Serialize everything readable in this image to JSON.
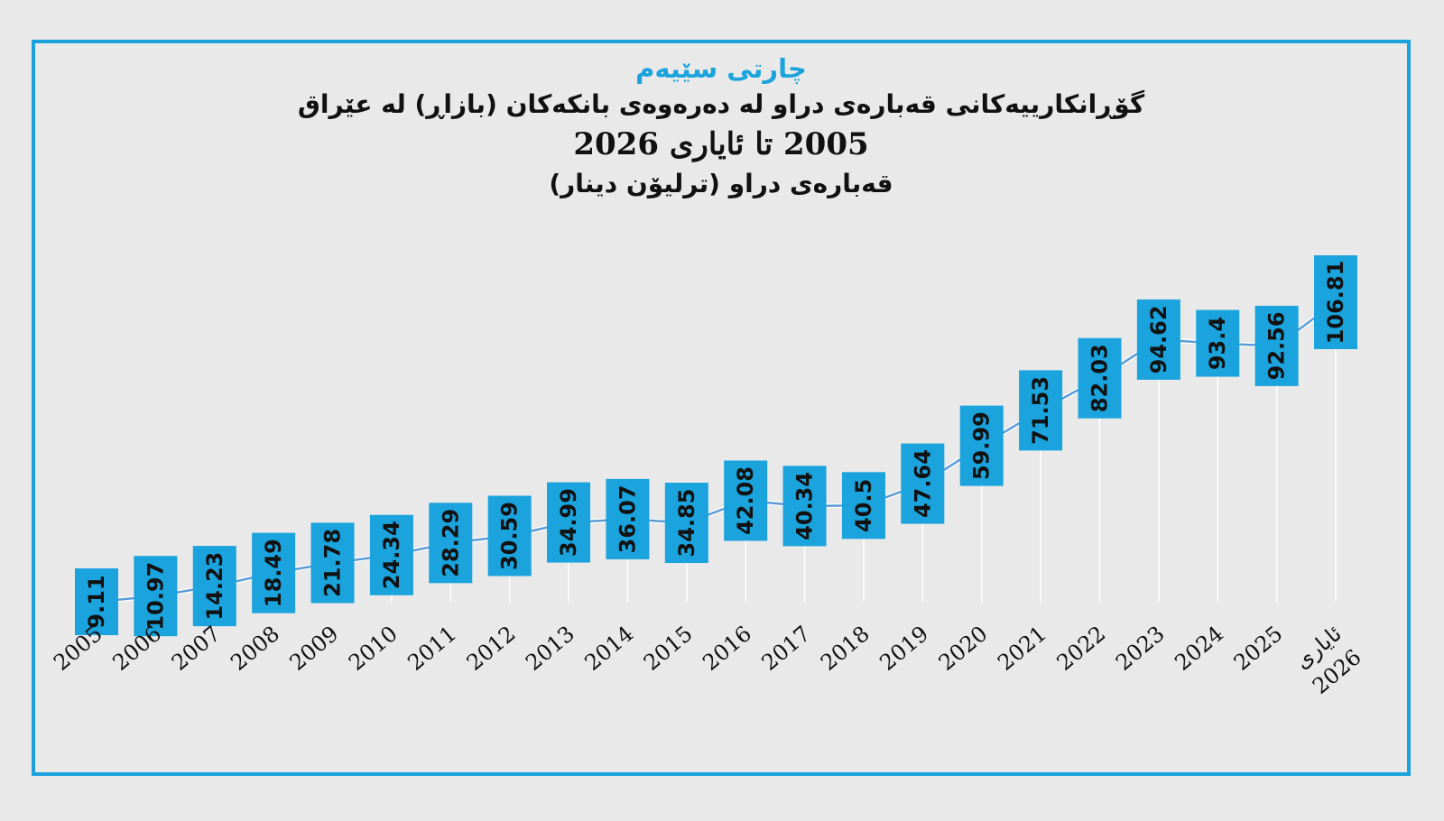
{
  "title": {
    "label": "چارتی سێیەم",
    "main": "گۆڕانکارییەکانی قەبارەی دراو لە دەرەوەی بانکەکان (بازاڕ) لە عێراق",
    "years": "2005 تا ئایاری 2026",
    "unit": "قەبارەی دراو (ترلیۆن دینار)"
  },
  "colors": {
    "accent": "#1aa3dc",
    "line": "#5b9bd5",
    "frame": "#1ba1dc",
    "background": "#e9e9e9"
  },
  "chart_data": {
    "type": "line",
    "categories": [
      "2005",
      "2006",
      "2007",
      "2008",
      "2009",
      "2010",
      "2011",
      "2012",
      "2013",
      "2014",
      "2015",
      "2016",
      "2017",
      "2018",
      "2019",
      "2020",
      "2021",
      "2022",
      "2023",
      "2024",
      "2025",
      "ئایاری 2026"
    ],
    "values": [
      9.11,
      10.97,
      14.23,
      18.49,
      21.78,
      24.34,
      28.29,
      30.59,
      34.99,
      36.07,
      34.85,
      42.08,
      40.34,
      40.5,
      47.64,
      59.99,
      71.53,
      82.03,
      94.62,
      93.4,
      92.56,
      106.81
    ],
    "data_labels": [
      "9.11",
      "10.97",
      "14.23",
      "18.49",
      "21.78",
      "24.34",
      "28.29",
      "30.59",
      "34.99",
      "36.07",
      "34.85",
      "42.08",
      "40.34",
      "40.5",
      "47.64",
      "59.99",
      "71.53",
      "82.03",
      "94.62",
      "93.4",
      "92.56",
      "106.81"
    ],
    "ylim": [
      0,
      110
    ],
    "grid": false,
    "legend": "none"
  }
}
